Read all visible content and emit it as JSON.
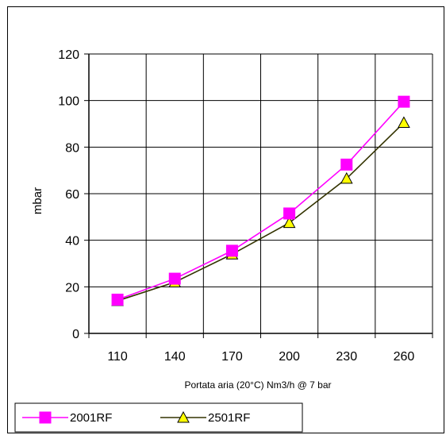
{
  "chart_data": {
    "type": "line",
    "title": "",
    "xlabel": "Portata aria (20°C) Nm3/h @ 7 bar",
    "ylabel": "mbar",
    "categories": [
      "110",
      "140",
      "170",
      "200",
      "230",
      "260"
    ],
    "ylim": [
      0,
      120
    ],
    "yticks": [
      "0",
      "20",
      "40",
      "60",
      "80",
      "100",
      "120"
    ],
    "grid": true,
    "legend_position": "bottom",
    "series": [
      {
        "name": "2001RF",
        "values": [
          14.5,
          23.5,
          35.5,
          51.5,
          72.5,
          99.5
        ],
        "color": "#ff00ff",
        "marker": "square",
        "marker_color": "#ff00ff"
      },
      {
        "name": "2501RF",
        "values": [
          14.0,
          22.0,
          34.0,
          47.5,
          66.5,
          90.5
        ],
        "color": "#333300",
        "marker": "triangle",
        "marker_color": "#ffff00"
      }
    ]
  }
}
